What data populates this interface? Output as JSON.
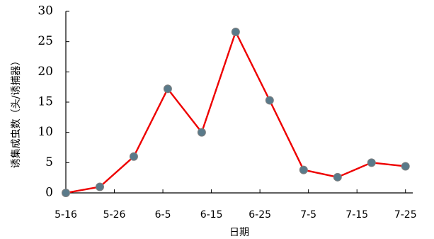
{
  "chart_data": {
    "type": "line",
    "xlabel": "日期",
    "ylabel": "诱集成虫数（头/诱捕器）",
    "ylim": [
      0,
      30
    ],
    "yticks": [
      0,
      5,
      10,
      15,
      20,
      25,
      30
    ],
    "xticks": [
      {
        "label": "5-16",
        "day": 0
      },
      {
        "label": "5-26",
        "day": 10
      },
      {
        "label": "6-5",
        "day": 20
      },
      {
        "label": "6-15",
        "day": 30
      },
      {
        "label": "6-25",
        "day": 40
      },
      {
        "label": "7-5",
        "day": 50
      },
      {
        "label": "7-15",
        "day": 60
      },
      {
        "label": "7-25",
        "day": 70
      }
    ],
    "xlim_days": [
      0,
      71.5
    ],
    "series": [
      {
        "color": "#ee0000",
        "marker_color": "#5a7a8a",
        "points": [
          {
            "date": "5-16",
            "day": 0,
            "value": 0
          },
          {
            "date": "5-23",
            "day": 7,
            "value": 1
          },
          {
            "date": "5-30",
            "day": 14,
            "value": 6
          },
          {
            "date": "6-6",
            "day": 21,
            "value": 17.2
          },
          {
            "date": "6-13",
            "day": 28,
            "value": 10
          },
          {
            "date": "6-20",
            "day": 35,
            "value": 26.6
          },
          {
            "date": "6-27",
            "day": 42,
            "value": 15.3
          },
          {
            "date": "7-4",
            "day": 49,
            "value": 3.8
          },
          {
            "date": "7-11",
            "day": 56,
            "value": 2.6
          },
          {
            "date": "7-18",
            "day": 63,
            "value": 5
          },
          {
            "date": "7-25",
            "day": 70,
            "value": 4.4
          }
        ]
      }
    ]
  }
}
